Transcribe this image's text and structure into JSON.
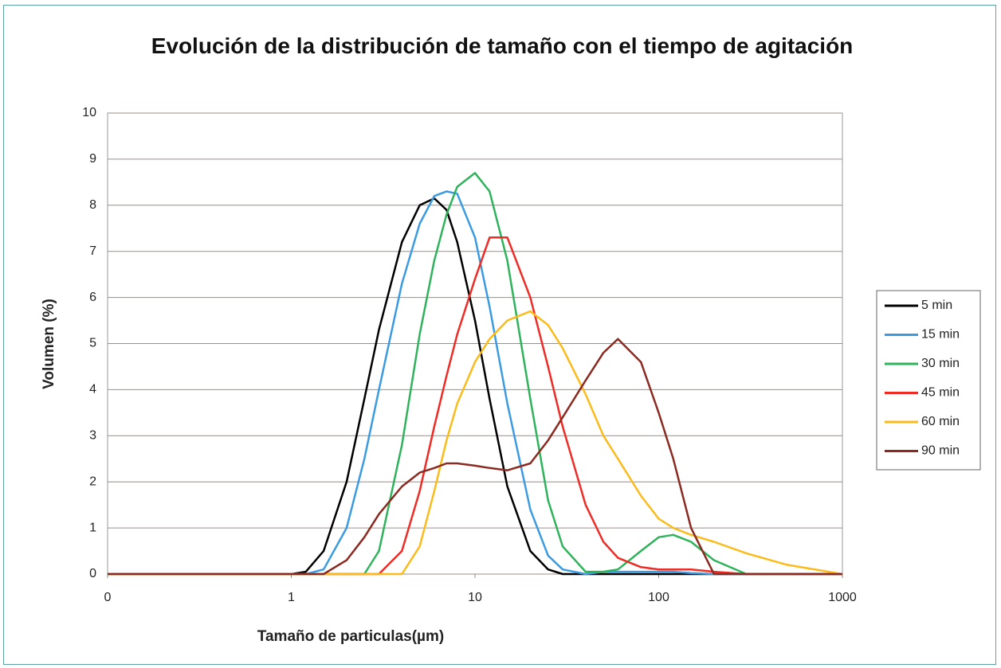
{
  "chart_data": {
    "type": "line",
    "title": "Evolución de la distribución de tamaño con el tiempo de agitación",
    "x_label": "Tamaño de particulas(µm)",
    "y_label": "Volumen (%)",
    "x_scale": "log",
    "xlim": [
      0.1,
      1000
    ],
    "ylim": [
      0,
      10
    ],
    "xticks": [
      {
        "value": 0.1,
        "label": "0"
      },
      1,
      10,
      100,
      1000
    ],
    "yticks": [
      0,
      1,
      2,
      3,
      4,
      5,
      6,
      7,
      8,
      9,
      10
    ],
    "grid": true,
    "legend": "right",
    "x": [
      0.1,
      1,
      1.2,
      1.5,
      2,
      2.5,
      3,
      4,
      5,
      6,
      7,
      8,
      10,
      12,
      15,
      20,
      25,
      30,
      40,
      50,
      60,
      80,
      100,
      120,
      150,
      200,
      300,
      500,
      1000
    ],
    "series": [
      {
        "name": "5 min",
        "color": "#000000",
        "values": [
          0,
          0,
          0.05,
          0.5,
          2.0,
          3.8,
          5.3,
          7.2,
          8.0,
          8.15,
          7.9,
          7.2,
          5.5,
          3.8,
          1.9,
          0.5,
          0.1,
          0,
          0,
          0,
          0,
          0,
          0,
          0,
          0,
          0,
          0,
          0,
          0
        ]
      },
      {
        "name": "15 min",
        "color": "#3a9be0",
        "values": [
          0,
          0,
          0,
          0.1,
          1.0,
          2.5,
          4.0,
          6.3,
          7.6,
          8.2,
          8.3,
          8.25,
          7.3,
          5.8,
          3.7,
          1.4,
          0.4,
          0.1,
          0,
          0.05,
          0.05,
          0.05,
          0.05,
          0.05,
          0.02,
          0,
          0,
          0,
          0
        ]
      },
      {
        "name": "30 min",
        "color": "#2eb35a",
        "values": [
          0,
          0,
          0,
          0,
          0,
          0,
          0.5,
          2.8,
          5.2,
          6.8,
          7.8,
          8.4,
          8.7,
          8.3,
          6.8,
          3.8,
          1.6,
          0.6,
          0.05,
          0.05,
          0.1,
          0.5,
          0.8,
          0.85,
          0.7,
          0.3,
          0,
          0,
          0
        ]
      },
      {
        "name": "45 min",
        "color": "#ee2b24",
        "values": [
          0,
          0,
          0,
          0,
          0,
          0,
          0,
          0.5,
          1.8,
          3.2,
          4.3,
          5.2,
          6.4,
          7.3,
          7.3,
          6.0,
          4.5,
          3.2,
          1.5,
          0.7,
          0.35,
          0.15,
          0.1,
          0.1,
          0.1,
          0.05,
          0,
          0,
          0
        ]
      },
      {
        "name": "60 min",
        "color": "#fbbb1a",
        "values": [
          0,
          0,
          0,
          0,
          0,
          0,
          0,
          0,
          0.6,
          1.8,
          2.9,
          3.7,
          4.6,
          5.1,
          5.5,
          5.7,
          5.4,
          4.9,
          3.9,
          3.0,
          2.5,
          1.7,
          1.2,
          1.0,
          0.85,
          0.7,
          0.45,
          0.2,
          0
        ]
      },
      {
        "name": "90 min",
        "color": "#8b2a20",
        "values": [
          0,
          0,
          0,
          0,
          0.3,
          0.8,
          1.3,
          1.9,
          2.2,
          2.3,
          2.4,
          2.4,
          2.35,
          2.3,
          2.25,
          2.4,
          2.9,
          3.4,
          4.2,
          4.8,
          5.1,
          4.6,
          3.5,
          2.5,
          1.0,
          0,
          0,
          0,
          0
        ]
      }
    ]
  }
}
